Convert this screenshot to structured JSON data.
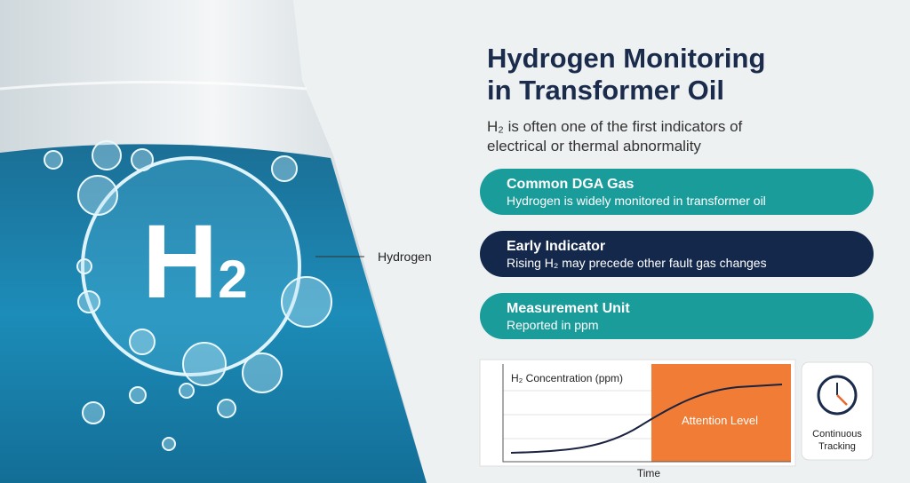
{
  "image_label": {
    "symbol": "H",
    "subscript": "2",
    "callout": "Hydrogen"
  },
  "header": {
    "title_lines": [
      "Hydrogen Monitoring",
      "in Transformer Oil"
    ],
    "subtitle_lines": [
      "H₂ is often one of the first indicators of",
      "electrical or thermal abnormality"
    ]
  },
  "cards": [
    {
      "title": "Common DGA Gas",
      "text": "Hydrogen is widely monitored in transformer oil"
    },
    {
      "title": "Early Indicator",
      "text": "Rising H₂ may precede other fault gas changes"
    },
    {
      "title": "Measurement Unit",
      "text": "Reported in ppm"
    }
  ],
  "trend_panel": {
    "label": "H₂ Concentration (ppm)",
    "zone_label": "Attention Level",
    "x_label": "Time"
  },
  "tracking": {
    "label": "Continuous Tracking"
  }
}
